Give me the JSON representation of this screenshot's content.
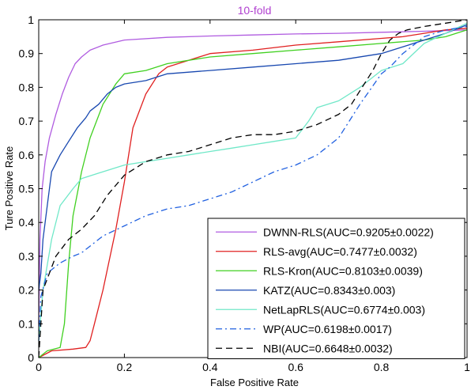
{
  "chart_data": {
    "type": "line",
    "title": "10-fold",
    "title_color": "#b040d0",
    "xlabel": "False Positive Rate",
    "ylabel": "Ture Positive Rate",
    "xlim": [
      0,
      1
    ],
    "ylim": [
      0,
      1
    ],
    "xticks": [
      0,
      0.2,
      0.4,
      0.6,
      0.8,
      1
    ],
    "xtick_labels": [
      "0",
      "0.2",
      "0.4",
      "0.6",
      "0.8",
      "1"
    ],
    "yticks": [
      0,
      0.1,
      0.2,
      0.3,
      0.4,
      0.5,
      0.6,
      0.7,
      0.8,
      0.9,
      1
    ],
    "ytick_labels": [
      "0",
      "0.1",
      "0.2",
      "0.3",
      "0.4",
      "0.5",
      "0.6",
      "0.7",
      "0.8",
      "0.9",
      "1"
    ],
    "grid": false,
    "legend_position": "bottom-right",
    "series": [
      {
        "name": "DWNN-RLS(AUC=0.9205±0.0022)",
        "color": "#b05ce0",
        "dash": "solid",
        "x": [
          0,
          0.003,
          0.008,
          0.015,
          0.025,
          0.04,
          0.055,
          0.07,
          0.085,
          0.1,
          0.12,
          0.15,
          0.2,
          0.3,
          0.4,
          0.5,
          0.6,
          0.7,
          0.8,
          0.9,
          1.0
        ],
        "y": [
          0.1,
          0.35,
          0.5,
          0.58,
          0.65,
          0.72,
          0.78,
          0.83,
          0.87,
          0.89,
          0.91,
          0.925,
          0.94,
          0.948,
          0.952,
          0.955,
          0.958,
          0.96,
          0.963,
          0.966,
          0.97
        ]
      },
      {
        "name": "RLS-avg(AUC=0.7477±0.0032)",
        "color": "#e02020",
        "dash": "solid",
        "x": [
          0,
          0.03,
          0.08,
          0.11,
          0.12,
          0.13,
          0.15,
          0.18,
          0.2,
          0.22,
          0.25,
          0.28,
          0.3,
          0.35,
          0.4,
          0.5,
          0.6,
          0.7,
          0.8,
          0.85,
          0.9,
          0.95,
          1.0
        ],
        "y": [
          0.0,
          0.02,
          0.025,
          0.03,
          0.05,
          0.1,
          0.2,
          0.38,
          0.52,
          0.68,
          0.78,
          0.84,
          0.86,
          0.88,
          0.9,
          0.91,
          0.925,
          0.935,
          0.945,
          0.95,
          0.96,
          0.97,
          0.975
        ]
      },
      {
        "name": "RLS-Kron(AUC=0.8103±0.0039)",
        "color": "#40d020",
        "dash": "solid",
        "x": [
          0,
          0.02,
          0.05,
          0.06,
          0.07,
          0.08,
          0.1,
          0.12,
          0.15,
          0.18,
          0.2,
          0.25,
          0.3,
          0.4,
          0.5,
          0.6,
          0.7,
          0.8,
          0.9,
          0.95,
          1.0
        ],
        "y": [
          0.0,
          0.02,
          0.03,
          0.1,
          0.28,
          0.42,
          0.55,
          0.65,
          0.75,
          0.81,
          0.84,
          0.85,
          0.87,
          0.89,
          0.9,
          0.91,
          0.92,
          0.93,
          0.94,
          0.95,
          0.97
        ]
      },
      {
        "name": "KATZ(AUC=0.8343±0.003)",
        "color": "#1848b0",
        "dash": "solid",
        "x": [
          0,
          0.005,
          0.01,
          0.02,
          0.03,
          0.05,
          0.07,
          0.09,
          0.11,
          0.12,
          0.14,
          0.16,
          0.18,
          0.2,
          0.25,
          0.3,
          0.4,
          0.5,
          0.6,
          0.7,
          0.8,
          0.85,
          0.9,
          0.95,
          1.0
        ],
        "y": [
          0.2,
          0.25,
          0.35,
          0.45,
          0.55,
          0.6,
          0.64,
          0.68,
          0.71,
          0.73,
          0.75,
          0.78,
          0.8,
          0.81,
          0.82,
          0.84,
          0.85,
          0.86,
          0.87,
          0.88,
          0.9,
          0.92,
          0.94,
          0.96,
          0.985
        ]
      },
      {
        "name": "NetLapRLS(AUC=0.6774±0.003)",
        "color": "#70e8c8",
        "dash": "solid",
        "x": [
          0,
          0.01,
          0.03,
          0.05,
          0.08,
          0.1,
          0.15,
          0.2,
          0.25,
          0.3,
          0.35,
          0.4,
          0.45,
          0.5,
          0.55,
          0.6,
          0.63,
          0.65,
          0.7,
          0.75,
          0.8,
          0.85,
          0.9,
          0.95,
          1.0
        ],
        "y": [
          0.05,
          0.2,
          0.35,
          0.45,
          0.5,
          0.53,
          0.55,
          0.57,
          0.58,
          0.59,
          0.6,
          0.61,
          0.62,
          0.63,
          0.64,
          0.65,
          0.7,
          0.74,
          0.76,
          0.8,
          0.85,
          0.87,
          0.93,
          0.96,
          0.99
        ]
      },
      {
        "name": "WP(AUC=0.6198±0.0017)",
        "color": "#2060e0",
        "dash": "dashdot",
        "x": [
          0,
          0.005,
          0.02,
          0.05,
          0.08,
          0.1,
          0.12,
          0.15,
          0.2,
          0.25,
          0.3,
          0.35,
          0.4,
          0.45,
          0.5,
          0.55,
          0.6,
          0.65,
          0.7,
          0.75,
          0.8,
          0.82,
          0.85,
          0.9,
          0.95,
          1.0
        ],
        "y": [
          0.05,
          0.18,
          0.25,
          0.28,
          0.3,
          0.31,
          0.33,
          0.36,
          0.39,
          0.42,
          0.44,
          0.45,
          0.47,
          0.49,
          0.52,
          0.55,
          0.57,
          0.6,
          0.65,
          0.75,
          0.84,
          0.86,
          0.9,
          0.95,
          0.97,
          0.98
        ]
      },
      {
        "name": "NBI(AUC=0.6648±0.0032)",
        "color": "#000000",
        "dash": "dashed",
        "x": [
          0,
          0.01,
          0.04,
          0.07,
          0.1,
          0.13,
          0.16,
          0.2,
          0.25,
          0.3,
          0.35,
          0.4,
          0.45,
          0.5,
          0.55,
          0.6,
          0.65,
          0.7,
          0.73,
          0.75,
          0.78,
          0.8,
          0.82,
          0.84,
          0.86,
          0.9,
          0.95,
          1.0
        ],
        "y": [
          0.0,
          0.2,
          0.3,
          0.35,
          0.38,
          0.42,
          0.48,
          0.54,
          0.58,
          0.6,
          0.61,
          0.63,
          0.65,
          0.66,
          0.66,
          0.67,
          0.69,
          0.72,
          0.75,
          0.79,
          0.85,
          0.9,
          0.94,
          0.96,
          0.97,
          0.98,
          0.99,
          1.0
        ]
      }
    ]
  }
}
